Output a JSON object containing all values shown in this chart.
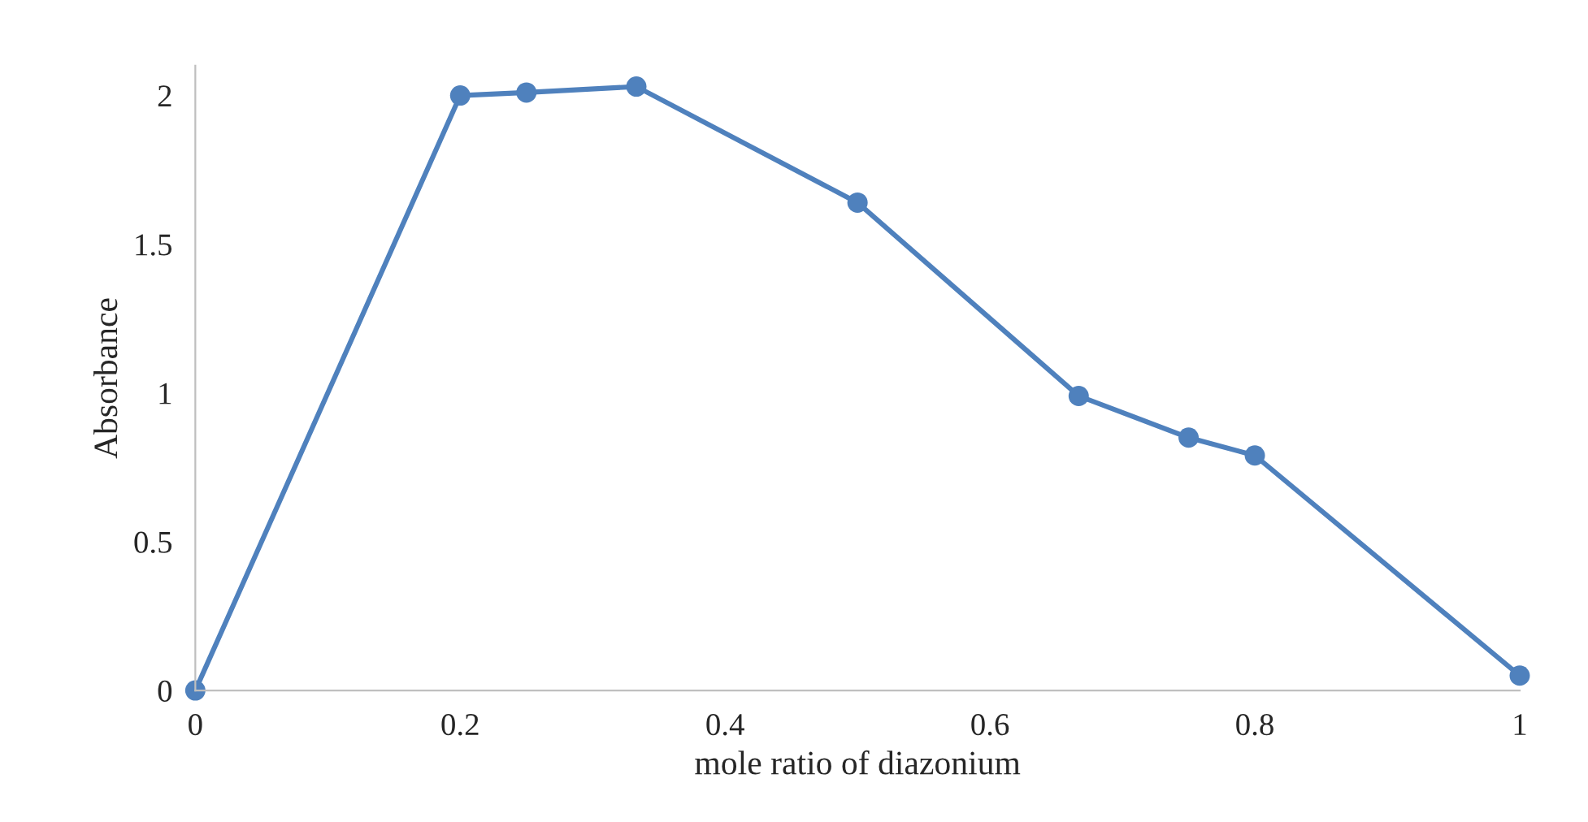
{
  "chart_data": {
    "type": "line",
    "xlabel": "mole ratio of diazonium",
    "ylabel": "Absorbance",
    "x": [
      0,
      0.2,
      0.25,
      0.333,
      0.5,
      0.667,
      0.75,
      0.8,
      1
    ],
    "series": [
      {
        "color": "#4f81bd",
        "values": [
          0,
          2.0,
          2.01,
          2.03,
          1.64,
          0.99,
          0.85,
          0.79,
          0.05
        ]
      }
    ],
    "xlim": [
      0,
      1
    ],
    "xticks": [
      0,
      0.2,
      0.4,
      0.6,
      0.8,
      1
    ],
    "ylim": [
      0,
      2.1
    ],
    "yticks": [
      0,
      0.5,
      1,
      1.5,
      2
    ],
    "grid": false,
    "legend": false,
    "marker": "circle",
    "line_style": "solid"
  }
}
